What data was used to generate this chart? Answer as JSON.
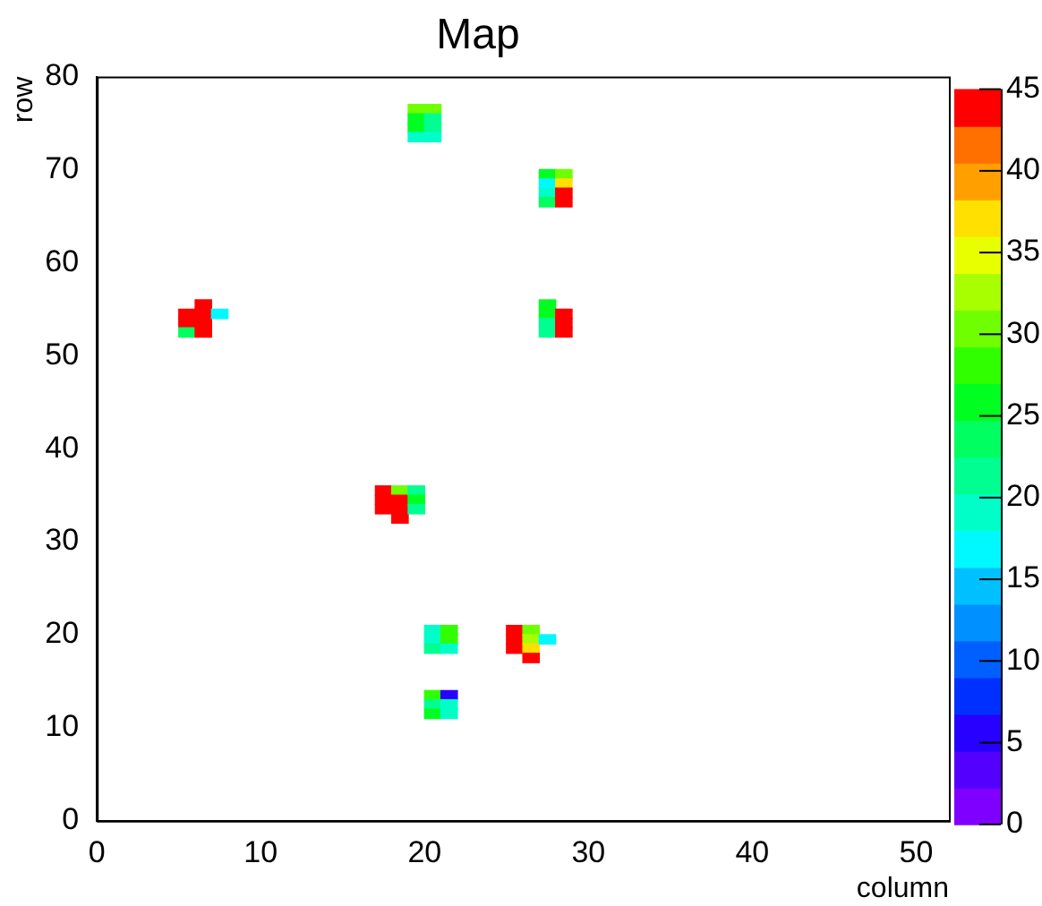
{
  "chart_data": {
    "type": "scatter",
    "title": "Map",
    "xlabel": "column",
    "ylabel": "row",
    "marker": "square",
    "grid": false,
    "legend": false,
    "xlim": [
      0,
      52
    ],
    "xticks": [
      0,
      10,
      20,
      30,
      40,
      50
    ],
    "ylim": [
      0,
      80
    ],
    "yticks": [
      0,
      10,
      20,
      30,
      40,
      50,
      60,
      70,
      80
    ],
    "clim": [
      0,
      45
    ],
    "cticks": [
      0,
      5,
      10,
      15,
      20,
      25,
      30,
      35,
      40,
      45
    ],
    "x": [
      19.5,
      20.5,
      19.5,
      20.5,
      19.5,
      20.5,
      19.5,
      20.5,
      27.5,
      28.5,
      27.5,
      28.5,
      27.5,
      28.5,
      27.5,
      28.5,
      27.5,
      27.5,
      27.5,
      27.5,
      28.5,
      28.5,
      28.5,
      5.5,
      5.5,
      5.5,
      6.5,
      6.5,
      6.5,
      6.5,
      7.5,
      17.5,
      17.5,
      17.5,
      18.5,
      18.5,
      18.5,
      18.5,
      19.5,
      19.5,
      19.5,
      20.5,
      20.5,
      20.5,
      21.5,
      21.5,
      21.5,
      25.5,
      25.5,
      25.5,
      26.5,
      26.5,
      26.5,
      26.5,
      27.5,
      20.5,
      20.5,
      20.5,
      21.5,
      21.5,
      21.5
    ],
    "values": [
      76.5,
      76.5,
      75.5,
      75.5,
      74.5,
      74.5,
      73.5,
      73.5,
      69.5,
      69.5,
      68.5,
      68.5,
      67.5,
      67.5,
      66.5,
      66.5,
      55.5,
      54.5,
      53.5,
      52.5,
      54.5,
      53.5,
      52.5,
      54.5,
      53.5,
      52.5,
      55.5,
      54.5,
      53.5,
      52.5,
      54.5,
      35.5,
      34.5,
      33.5,
      35.5,
      34.5,
      33.5,
      32.5,
      35.5,
      34.5,
      33.5,
      20.5,
      19.5,
      18.5,
      20.5,
      19.5,
      18.5,
      20.5,
      19.5,
      18.5,
      20.5,
      19.5,
      18.5,
      17.5,
      19.5,
      13.5,
      12.5,
      11.5,
      13.5,
      12.5,
      11.5
    ],
    "cvalues": [
      30,
      30,
      26,
      21,
      25,
      21,
      20,
      20,
      25,
      30,
      16,
      38,
      20,
      43,
      24,
      43,
      26,
      26,
      21,
      21,
      43,
      43,
      43,
      45,
      45,
      24,
      45,
      45,
      45,
      45,
      16,
      45,
      45,
      45,
      31,
      43,
      43,
      43,
      21,
      26,
      21,
      19,
      19,
      21,
      27,
      27,
      20,
      45,
      45,
      45,
      30,
      32,
      38,
      43,
      16,
      27,
      21,
      25,
      5,
      20,
      20
    ]
  }
}
